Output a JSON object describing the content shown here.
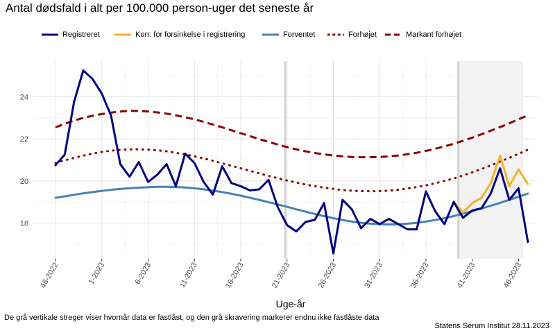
{
  "title": "Antal dødsfald i alt per 100.000 person-uger det seneste år",
  "legend": {
    "registreret": "Registreret",
    "korr": "Korr. for forsinkelse i registrering",
    "forventet": "Forventet",
    "forhojet": "Forhøjet",
    "markant": "Markant forhøjet"
  },
  "footnote": "De grå vertikale streger viser hvornår data er fastlåst, og den grå skravering markerer endnu ikke fastlåste data",
  "source": "Statens Serum Institut  28.11.2023",
  "colors": {
    "registreret": "#000080",
    "korr": "#f0b429",
    "forventet": "#4682b4",
    "forhojet": "#8b0000",
    "markant": "#8b0000",
    "shade": "#f2f2f2",
    "lock_line": "#d3d3d3"
  },
  "chart_data": {
    "type": "line",
    "xlabel": "Uge-år",
    "ylabel": "",
    "ylim": [
      16.3,
      25.7
    ],
    "yticks": [
      18,
      20,
      22,
      24
    ],
    "x_index_range": [
      0,
      50
    ],
    "xticks": [
      {
        "i": 0,
        "label": "48-2022"
      },
      {
        "i": 5,
        "label": "1-2023"
      },
      {
        "i": 10,
        "label": "6-2023"
      },
      {
        "i": 15,
        "label": "11-2023"
      },
      {
        "i": 20,
        "label": "16-2023"
      },
      {
        "i": 25,
        "label": "21-2023"
      },
      {
        "i": 30,
        "label": "26-2023"
      },
      {
        "i": 35,
        "label": "31-2023"
      },
      {
        "i": 40,
        "label": "36-2023"
      },
      {
        "i": 45,
        "label": "41-2023"
      },
      {
        "i": 50,
        "label": "46-2023"
      }
    ],
    "lock_lines": [
      24.8,
      43.5
    ],
    "shaded_region": [
      43.5,
      50.5
    ],
    "series": [
      {
        "name": "Registreret",
        "key": "registreret",
        "style": "solid",
        "x_start": 0,
        "values": [
          20.75,
          21.25,
          23.75,
          25.25,
          24.85,
          24.15,
          23.1,
          20.8,
          20.2,
          20.9,
          19.95,
          20.3,
          20.8,
          19.75,
          21.3,
          20.85,
          19.95,
          19.35,
          20.7,
          19.9,
          19.75,
          19.55,
          19.6,
          20.05,
          18.75,
          17.9,
          17.6,
          18.05,
          18.15,
          18.95,
          16.55,
          19.1,
          18.65,
          17.75,
          18.2,
          17.95,
          18.2,
          17.95,
          17.7,
          17.7,
          19.5,
          18.55,
          17.95,
          19.0,
          18.25,
          18.6,
          18.7,
          19.4,
          20.6,
          19.1,
          19.65,
          17.1
        ]
      },
      {
        "name": "Korr. for forsinkelse i registrering",
        "key": "korr",
        "style": "solid",
        "x_start": 43,
        "values": [
          19.0,
          18.5,
          18.95,
          19.2,
          19.9,
          21.2,
          19.75,
          20.55,
          19.85
        ]
      },
      {
        "name": "Forventet",
        "key": "forventet",
        "style": "solid",
        "x_start": 0,
        "values": [
          19.2,
          19.27,
          19.34,
          19.41,
          19.47,
          19.53,
          19.58,
          19.62,
          19.65,
          19.68,
          19.7,
          19.72,
          19.72,
          19.71,
          19.69,
          19.65,
          19.6,
          19.54,
          19.47,
          19.39,
          19.3,
          19.2,
          19.1,
          18.99,
          18.88,
          18.77,
          18.65,
          18.54,
          18.43,
          18.33,
          18.23,
          18.14,
          18.07,
          18.01,
          17.97,
          17.94,
          17.93,
          17.94,
          17.97,
          18.01,
          18.07,
          18.14,
          18.23,
          18.33,
          18.44,
          18.56,
          18.69,
          18.82,
          18.96,
          19.1,
          19.25,
          19.4
        ]
      },
      {
        "name": "Forhøjet",
        "key": "forhojet",
        "style": "dotted",
        "x_start": 0,
        "values": [
          20.85,
          20.98,
          21.1,
          21.2,
          21.3,
          21.38,
          21.44,
          21.48,
          21.5,
          21.5,
          21.49,
          21.46,
          21.41,
          21.34,
          21.26,
          21.17,
          21.07,
          20.96,
          20.84,
          20.72,
          20.6,
          20.48,
          20.36,
          20.24,
          20.13,
          20.02,
          19.92,
          19.83,
          19.75,
          19.68,
          19.62,
          19.57,
          19.54,
          19.52,
          19.51,
          19.52,
          19.54,
          19.58,
          19.64,
          19.71,
          19.79,
          19.89,
          20.0,
          20.12,
          20.26,
          20.41,
          20.57,
          20.74,
          20.92,
          21.1,
          21.29,
          21.48
        ]
      },
      {
        "name": "Markant forhøjet",
        "key": "markant",
        "style": "dashed",
        "x_start": 0,
        "values": [
          22.55,
          22.72,
          22.87,
          23.0,
          23.1,
          23.18,
          23.25,
          23.3,
          23.33,
          23.33,
          23.3,
          23.26,
          23.2,
          23.12,
          23.03,
          22.93,
          22.81,
          22.68,
          22.55,
          22.41,
          22.27,
          22.13,
          21.99,
          21.86,
          21.73,
          21.61,
          21.5,
          21.41,
          21.33,
          21.26,
          21.21,
          21.17,
          21.14,
          21.13,
          21.13,
          21.14,
          21.17,
          21.21,
          21.27,
          21.34,
          21.43,
          21.53,
          21.64,
          21.77,
          21.91,
          22.06,
          22.22,
          22.39,
          22.56,
          22.74,
          22.93,
          23.12
        ]
      }
    ]
  }
}
